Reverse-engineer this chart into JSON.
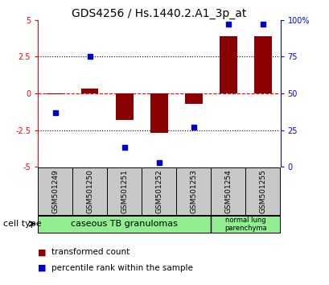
{
  "title": "GDS4256 / Hs.1440.2.A1_3p_at",
  "samples": [
    "GSM501249",
    "GSM501250",
    "GSM501251",
    "GSM501252",
    "GSM501253",
    "GSM501254",
    "GSM501255"
  ],
  "red_bars": [
    -0.05,
    0.3,
    -1.8,
    -2.7,
    -0.7,
    3.9,
    3.9
  ],
  "blue_squares_pct": [
    37,
    75,
    13,
    3,
    27,
    97,
    97
  ],
  "ylim": [
    -5,
    5
  ],
  "yticks_left": [
    -5,
    -2.5,
    0,
    2.5,
    5
  ],
  "right_tick_labels": [
    "0",
    "25",
    "50",
    "75",
    "100%"
  ],
  "bar_color": "#8B0000",
  "square_color": "#0000CC",
  "group1_label": "caseous TB granulomas",
  "group2_label": "normal lung\nparenchyma",
  "cell_type_label": "cell type",
  "legend1": "transformed count",
  "legend2": "percentile rank within the sample",
  "group_color": "#90EE90",
  "sample_box_color": "#C8C8C8",
  "bg_color": "#FFFFFF",
  "title_fontsize": 10,
  "tick_label_fontsize": 7,
  "sample_fontsize": 6.5,
  "group_fontsize": 8,
  "legend_fontsize": 7.5
}
